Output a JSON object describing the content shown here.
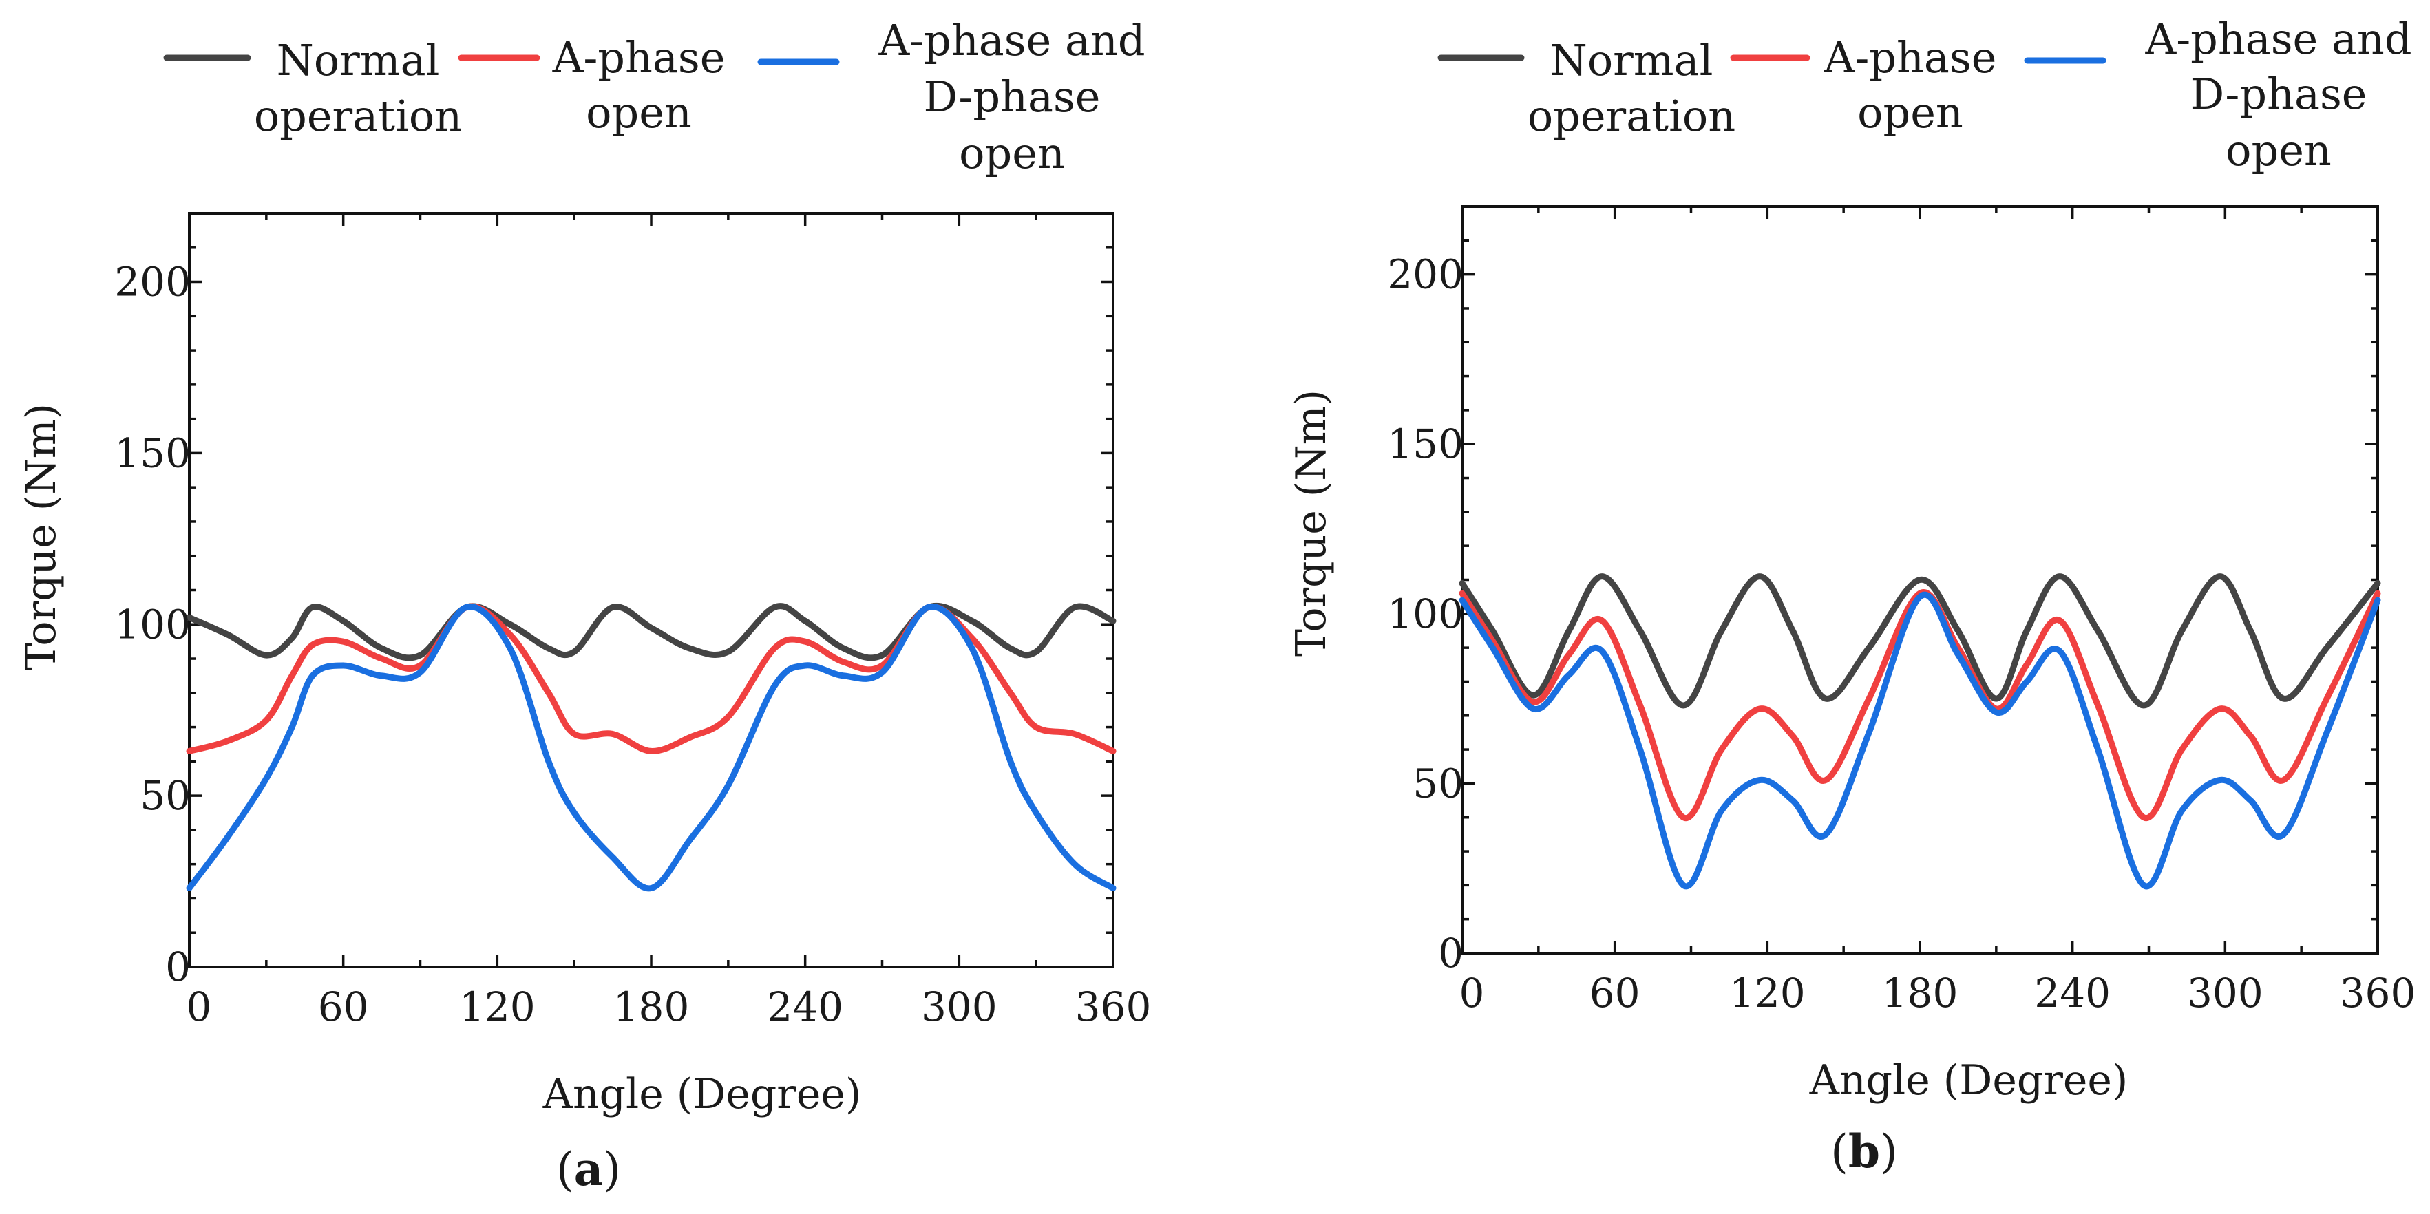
{
  "legend": [
    {
      "name": "Normal operation",
      "lines": [
        "Normal",
        "operation"
      ],
      "color": "#444444"
    },
    {
      "name": "A-phase open",
      "lines": [
        "A-phase",
        "open"
      ],
      "color": "#f04040"
    },
    {
      "name": "A-phase and D-phase open",
      "lines": [
        "A-phase and",
        "D-phase",
        "open"
      ],
      "color": "#1a6fe0"
    }
  ],
  "chart_data": [
    {
      "type": "line",
      "panel_label": "(a)",
      "panel_letter": "a",
      "xlabel": "Angle (Degree)",
      "ylabel": "Torque (Nm)",
      "xlim": [
        0,
        360
      ],
      "ylim": [
        0,
        220
      ],
      "xticks": [
        "0",
        "60",
        "120",
        "180",
        "240",
        "300",
        "360"
      ],
      "yticks": [
        "0",
        "50",
        "100",
        "150",
        "200"
      ],
      "x": [
        0,
        15,
        30,
        40,
        48,
        60,
        75,
        90,
        108,
        125,
        140,
        150,
        165,
        180,
        195,
        210,
        228,
        240,
        255,
        270,
        288,
        305,
        320,
        330,
        345,
        360
      ],
      "series": [
        {
          "name": "Normal operation",
          "color": "#444444",
          "values": [
            102,
            97,
            91,
            96,
            105,
            101,
            93,
            91,
            105,
            100,
            93,
            92,
            105,
            99,
            93,
            92,
            105,
            101,
            93,
            91,
            105,
            101,
            93,
            92,
            105,
            101
          ]
        },
        {
          "name": "A-phase open",
          "color": "#f04040",
          "values": [
            63,
            66,
            72,
            85,
            94,
            95,
            90,
            88,
            105,
            97,
            80,
            68,
            68,
            63,
            67,
            73,
            93,
            95,
            89,
            88,
            105,
            96,
            80,
            70,
            68,
            63
          ]
        },
        {
          "name": "A-phase and D-phase open",
          "color": "#1a6fe0",
          "values": [
            23,
            38,
            55,
            70,
            85,
            88,
            85,
            86,
            105,
            93,
            60,
            45,
            32,
            23,
            37,
            53,
            82,
            88,
            85,
            86,
            105,
            93,
            60,
            45,
            30,
            23
          ]
        }
      ]
    },
    {
      "type": "line",
      "panel_label": "(b)",
      "panel_letter": "b",
      "xlabel": "Angle (Degree)",
      "ylabel": "Torque (Nm)",
      "xlim": [
        0,
        360
      ],
      "ylim": [
        0,
        220
      ],
      "xticks": [
        "0",
        "60",
        "120",
        "180",
        "240",
        "300",
        "360"
      ],
      "yticks": [
        "0",
        "50",
        "100",
        "150",
        "200"
      ],
      "x": [
        0,
        12,
        28,
        42,
        55,
        70,
        87,
        102,
        117,
        130,
        143,
        160,
        180,
        195,
        210,
        222,
        235,
        250,
        268,
        283,
        298,
        310,
        323,
        340,
        360
      ],
      "series": [
        {
          "name": "Normal operation",
          "color": "#444444",
          "values": [
            109,
            95,
            76,
            95,
            111,
            95,
            73,
            95,
            111,
            95,
            75,
            90,
            110,
            95,
            75,
            95,
            111,
            95,
            73,
            95,
            111,
            95,
            75,
            90,
            109
          ]
        },
        {
          "name": "A-phase open",
          "color": "#f04040",
          "values": [
            106,
            92,
            74,
            88,
            98,
            73,
            40,
            60,
            72,
            64,
            51,
            75,
            106,
            90,
            72,
            85,
            98,
            73,
            40,
            60,
            72,
            64,
            51,
            75,
            106
          ]
        },
        {
          "name": "A-phase and D-phase open",
          "color": "#1a6fe0",
          "values": [
            104,
            90,
            72,
            82,
            89,
            60,
            20,
            42,
            51,
            45,
            35,
            65,
            105,
            88,
            71,
            80,
            89,
            60,
            20,
            42,
            51,
            45,
            35,
            65,
            104
          ]
        }
      ]
    }
  ]
}
